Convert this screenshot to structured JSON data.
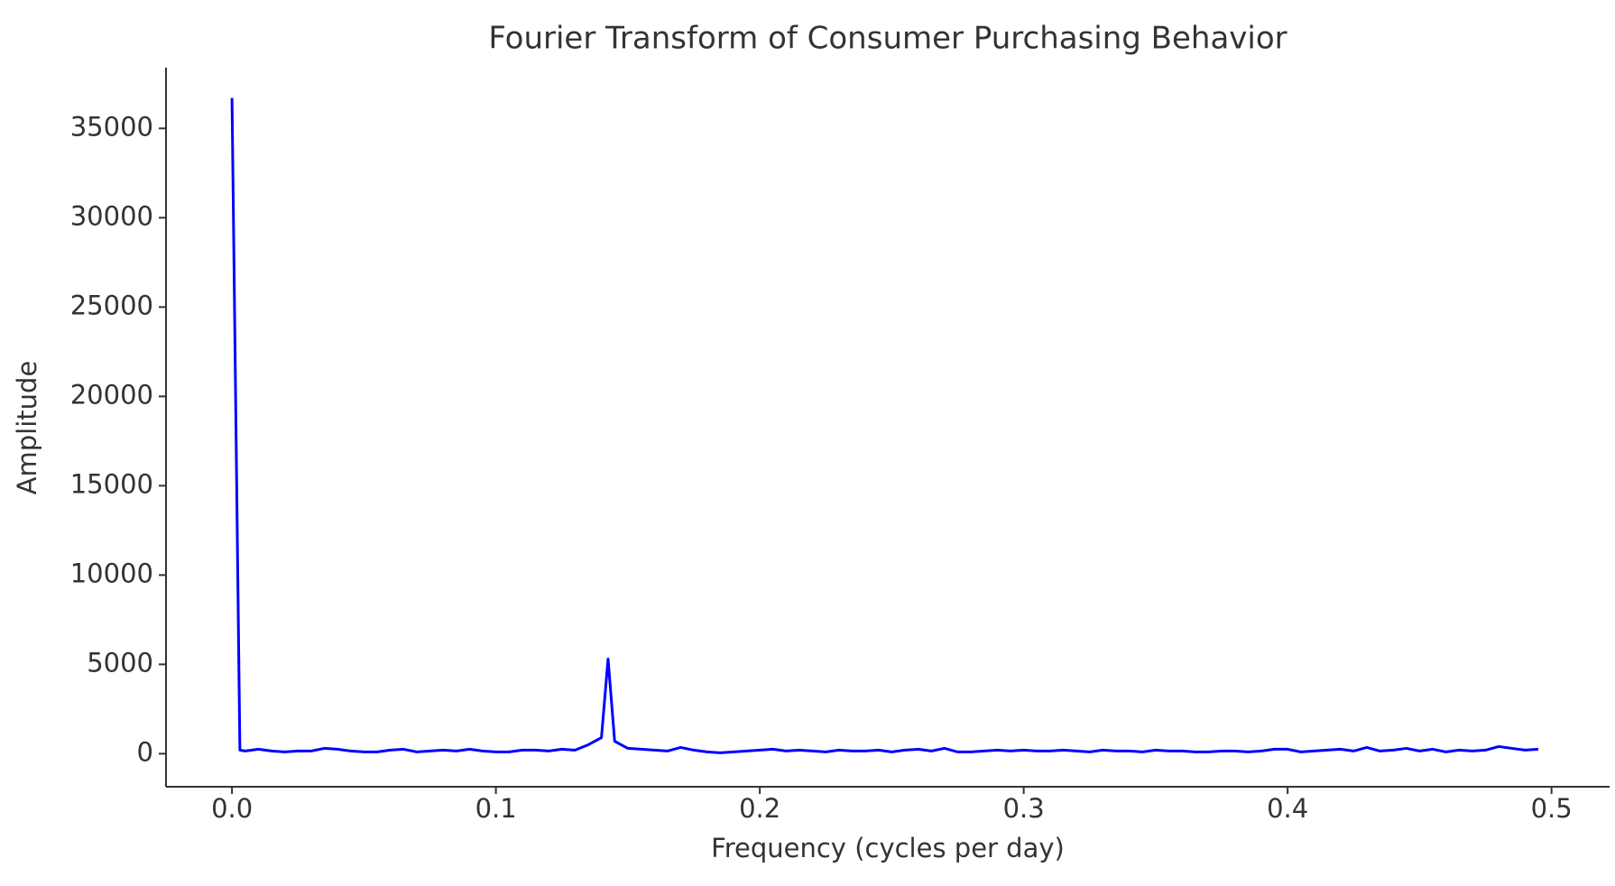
{
  "chart_data": {
    "type": "line",
    "title": "Fourier Transform of Consumer Purchasing Behavior",
    "xlabel": "Frequency (cycles per day)",
    "ylabel": "Amplitude",
    "x": [
      0,
      0.003,
      0.005,
      0.01,
      0.015,
      0.02,
      0.025,
      0.03,
      0.035,
      0.04,
      0.045,
      0.05,
      0.055,
      0.06,
      0.065,
      0.07,
      0.075,
      0.08,
      0.085,
      0.09,
      0.095,
      0.1,
      0.105,
      0.11,
      0.115,
      0.12,
      0.125,
      0.13,
      0.135,
      0.14,
      0.1425,
      0.145,
      0.15,
      0.155,
      0.16,
      0.165,
      0.17,
      0.175,
      0.18,
      0.185,
      0.19,
      0.195,
      0.2,
      0.205,
      0.21,
      0.215,
      0.22,
      0.225,
      0.23,
      0.235,
      0.24,
      0.245,
      0.25,
      0.255,
      0.26,
      0.265,
      0.27,
      0.275,
      0.28,
      0.285,
      0.29,
      0.295,
      0.3,
      0.305,
      0.31,
      0.315,
      0.32,
      0.325,
      0.33,
      0.335,
      0.34,
      0.345,
      0.35,
      0.355,
      0.36,
      0.365,
      0.37,
      0.375,
      0.38,
      0.385,
      0.39,
      0.395,
      0.4,
      0.405,
      0.41,
      0.415,
      0.42,
      0.425,
      0.43,
      0.435,
      0.44,
      0.445,
      0.45,
      0.455,
      0.46,
      0.465,
      0.47,
      0.475,
      0.48,
      0.485,
      0.49,
      0.495
    ],
    "series": [
      {
        "name": "Amplitude",
        "color": "#0000ff",
        "values": [
          36700,
          200,
          150,
          250,
          150,
          100,
          150,
          150,
          300,
          250,
          150,
          100,
          100,
          200,
          250,
          100,
          150,
          200,
          150,
          250,
          150,
          100,
          100,
          200,
          200,
          150,
          250,
          200,
          500,
          900,
          5300,
          700,
          300,
          250,
          200,
          150,
          350,
          200,
          100,
          50,
          100,
          150,
          200,
          250,
          150,
          200,
          150,
          100,
          200,
          150,
          150,
          200,
          100,
          200,
          250,
          150,
          300,
          100,
          100,
          150,
          200,
          150,
          200,
          150,
          150,
          200,
          150,
          100,
          200,
          150,
          150,
          100,
          200,
          150,
          150,
          100,
          100,
          150,
          150,
          100,
          150,
          250,
          250,
          100,
          150,
          200,
          250,
          150,
          350,
          150,
          200,
          300,
          150,
          250,
          100,
          200,
          150,
          200,
          400,
          300,
          200,
          250
        ]
      }
    ],
    "xlim": [
      -0.025,
      0.522
    ],
    "ylim": [
      -1850,
      38400
    ],
    "xticks": [
      {
        "value": 0,
        "label": "0.0"
      },
      0.1,
      0.2,
      0.3,
      0.4,
      0.5
    ],
    "yticks": [
      0,
      5000,
      10000,
      15000,
      20000,
      25000,
      30000,
      35000
    ],
    "grid": false
  }
}
